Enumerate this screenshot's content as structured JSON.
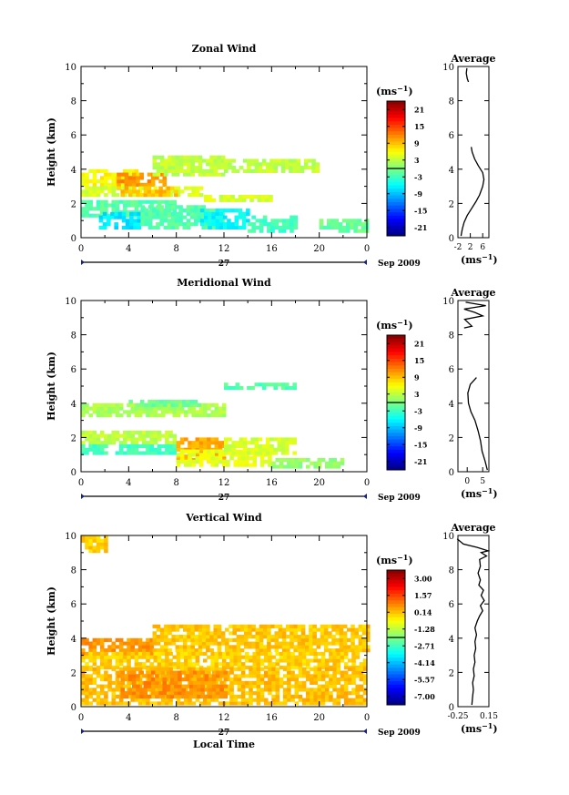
{
  "chart_data": [
    {
      "type": "heatmap",
      "title": "Zonal Wind",
      "ylabel": "Height (km)",
      "xlabel": "",
      "xlim": [
        0,
        24
      ],
      "ylim": [
        0,
        10
      ],
      "x_ticks": [
        "0",
        "4",
        "8",
        "12",
        "16",
        "20",
        "0"
      ],
      "y_ticks": [
        "0",
        "2",
        "4",
        "6",
        "8",
        "10"
      ],
      "day_label": "27",
      "date_label": "Sep 2009",
      "colorbar": {
        "unit_base": "(ms",
        "unit_exp": "−1",
        "unit_close": ")",
        "labels": [
          "21",
          "15",
          "9",
          "3",
          "-3",
          "-9",
          "-15",
          "-21"
        ],
        "vmin": -24,
        "vmax": 24
      },
      "regions": [
        {
          "x": [
            0,
            5
          ],
          "y": [
            3.0,
            3.9
          ],
          "value": 6
        },
        {
          "x": [
            3,
            7
          ],
          "y": [
            3.0,
            3.8
          ],
          "value": 11
        },
        {
          "x": [
            6,
            12
          ],
          "y": [
            3.6,
            4.8
          ],
          "value": 3
        },
        {
          "x": [
            12,
            20
          ],
          "y": [
            3.8,
            4.5
          ],
          "value": 3
        },
        {
          "x": [
            0,
            10
          ],
          "y": [
            2.4,
            3.0
          ],
          "value": 4
        },
        {
          "x": [
            3,
            8
          ],
          "y": [
            2.4,
            2.9
          ],
          "value": 9
        },
        {
          "x": [
            10,
            16
          ],
          "y": [
            2.1,
            2.5
          ],
          "value": 4
        },
        {
          "x": [
            0,
            8
          ],
          "y": [
            1.2,
            2.1
          ],
          "value": -2
        },
        {
          "x": [
            1.5,
            5
          ],
          "y": [
            0.5,
            1.4
          ],
          "value": -7
        },
        {
          "x": [
            5,
            12
          ],
          "y": [
            0.5,
            1.8
          ],
          "value": -2
        },
        {
          "x": [
            10,
            14
          ],
          "y": [
            0.5,
            1.6
          ],
          "value": -6
        },
        {
          "x": [
            14,
            18
          ],
          "y": [
            0.3,
            1.3
          ],
          "value": -3
        },
        {
          "x": [
            20,
            24
          ],
          "y": [
            0.3,
            1.1
          ],
          "value": -1
        }
      ],
      "profile": {
        "title": "Average",
        "xlim": [
          -2,
          8
        ],
        "x_ticks": [
          "-2",
          "2",
          "6"
        ],
        "x_tick_values": [
          -2,
          2,
          6
        ],
        "y_ticks": [
          "0",
          "2",
          "4",
          "6",
          "8",
          "10"
        ],
        "unit_base": "(ms",
        "unit_exp": "−1",
        "unit_close": ")",
        "segments": [
          [
            [
              -1.0,
              0.1
            ],
            [
              -0.6,
              0.5
            ],
            [
              0.0,
              0.9
            ],
            [
              1.0,
              1.3
            ],
            [
              2.4,
              1.7
            ],
            [
              3.8,
              2.1
            ],
            [
              5.0,
              2.5
            ],
            [
              6.0,
              3.0
            ],
            [
              6.4,
              3.4
            ],
            [
              6.0,
              3.8
            ],
            [
              4.6,
              4.2
            ],
            [
              3.4,
              4.6
            ],
            [
              2.6,
              5.0
            ],
            [
              2.3,
              5.3
            ]
          ],
          [
            [
              1.4,
              9.1
            ],
            [
              1.0,
              9.3
            ],
            [
              0.7,
              9.6
            ],
            [
              0.9,
              9.9
            ]
          ]
        ]
      }
    },
    {
      "type": "heatmap",
      "title": "Meridional Wind",
      "ylabel": "Height (km)",
      "xlabel": "",
      "xlim": [
        0,
        24
      ],
      "ylim": [
        0,
        10
      ],
      "x_ticks": [
        "0",
        "4",
        "8",
        "12",
        "16",
        "20",
        "0"
      ],
      "y_ticks": [
        "0",
        "2",
        "4",
        "6",
        "8",
        "10"
      ],
      "day_label": "27",
      "date_label": "Sep 2009",
      "colorbar": {
        "unit_base": "(ms",
        "unit_exp": "−1",
        "unit_close": ")",
        "labels": [
          "21",
          "15",
          "9",
          "3",
          "-3",
          "-9",
          "-15",
          "-21"
        ],
        "vmin": -24,
        "vmax": 24
      },
      "regions": [
        {
          "x": [
            0,
            12
          ],
          "y": [
            3.2,
            4.0
          ],
          "value": 2
        },
        {
          "x": [
            4,
            10
          ],
          "y": [
            3.8,
            4.2
          ],
          "value": -1
        },
        {
          "x": [
            12,
            18
          ],
          "y": [
            4.8,
            5.2
          ],
          "value": -2
        },
        {
          "x": [
            0,
            8
          ],
          "y": [
            1.6,
            2.4
          ],
          "value": 3
        },
        {
          "x": [
            0,
            8
          ],
          "y": [
            1.0,
            1.6
          ],
          "value": -3
        },
        {
          "x": [
            8,
            12
          ],
          "y": [
            0.6,
            1.9
          ],
          "value": 10
        },
        {
          "x": [
            8,
            16
          ],
          "y": [
            0.3,
            1.2
          ],
          "value": 5
        },
        {
          "x": [
            12,
            18
          ],
          "y": [
            1.0,
            1.9
          ],
          "value": 4
        },
        {
          "x": [
            16,
            22
          ],
          "y": [
            0.2,
            0.8
          ],
          "value": 1
        }
      ],
      "profile": {
        "title": "Average",
        "xlim": [
          -3,
          7
        ],
        "x_ticks": [
          "0",
          "5"
        ],
        "x_tick_values": [
          0,
          5
        ],
        "y_ticks": [
          "0",
          "2",
          "4",
          "6",
          "8",
          "10"
        ],
        "unit_base": "(ms",
        "unit_exp": "−1",
        "unit_close": ")",
        "segments": [
          [
            [
              6.5,
              0.1
            ],
            [
              5.8,
              0.6
            ],
            [
              4.8,
              1.2
            ],
            [
              4.3,
              1.8
            ],
            [
              3.5,
              2.4
            ],
            [
              2.5,
              3.0
            ],
            [
              1.2,
              3.5
            ],
            [
              0.4,
              4.0
            ],
            [
              0.2,
              4.6
            ],
            [
              1.0,
              5.1
            ],
            [
              3.0,
              5.5
            ]
          ],
          [
            [
              -1.0,
              8.4
            ],
            [
              1.5,
              8.5
            ],
            [
              -0.8,
              8.9
            ],
            [
              5.0,
              9.1
            ],
            [
              2.5,
              9.3
            ],
            [
              -1.0,
              9.5
            ],
            [
              6.0,
              9.7
            ],
            [
              -0.5,
              9.9
            ]
          ]
        ]
      }
    },
    {
      "type": "heatmap",
      "title": "Vertical Wind",
      "ylabel": "Height (km)",
      "xlabel": "Local Time",
      "xlim": [
        0,
        24
      ],
      "ylim": [
        0,
        10
      ],
      "x_ticks": [
        "0",
        "4",
        "8",
        "12",
        "16",
        "20",
        "0"
      ],
      "y_ticks": [
        "0",
        "2",
        "4",
        "6",
        "8",
        "10"
      ],
      "day_label": "27",
      "date_label": "Sep 2009",
      "colorbar": {
        "unit_base": "(ms",
        "unit_exp": "−1",
        "unit_close": ")",
        "labels": [
          "3.00",
          "1.57",
          "0.14",
          "-1.28",
          "-2.71",
          "-4.14",
          "-5.57",
          "-7.00"
        ],
        "vmin": -8.4,
        "vmax": 4.4
      },
      "regions": [
        {
          "x": [
            0,
            6
          ],
          "y": [
            3.0,
            3.9
          ],
          "value": 0.9
        },
        {
          "x": [
            6,
            24
          ],
          "y": [
            3.2,
            4.8
          ],
          "value": 0.3
        },
        {
          "x": [
            0,
            24
          ],
          "y": [
            2.2,
            3.2
          ],
          "value": 0.2
        },
        {
          "x": [
            0,
            24
          ],
          "y": [
            0.1,
            2.2
          ],
          "value": 0.4
        },
        {
          "x": [
            3,
            12
          ],
          "y": [
            0.5,
            2.0
          ],
          "value": 1.0
        },
        {
          "x": [
            0,
            2
          ],
          "y": [
            9.0,
            10.0
          ],
          "value": 0.2
        }
      ],
      "profile": {
        "title": "Average",
        "xlim": [
          -0.25,
          0.15
        ],
        "x_ticks": [
          "-0.25",
          "0.15"
        ],
        "x_tick_values": [
          -0.25,
          0.15
        ],
        "y_ticks": [
          "0",
          "2",
          "4",
          "6",
          "8",
          "10"
        ],
        "unit_base": "(ms",
        "unit_exp": "−1",
        "unit_close": ")",
        "segments": [
          [
            [
              -0.07,
              0.1
            ],
            [
              -0.06,
              0.6
            ],
            [
              -0.05,
              1.0
            ],
            [
              -0.06,
              1.4
            ],
            [
              -0.04,
              1.8
            ],
            [
              -0.05,
              2.2
            ],
            [
              -0.03,
              2.6
            ],
            [
              -0.04,
              3.0
            ],
            [
              -0.02,
              3.4
            ],
            [
              -0.03,
              3.8
            ],
            [
              -0.01,
              4.2
            ],
            [
              -0.03,
              4.6
            ],
            [
              0.0,
              5.0
            ],
            [
              0.03,
              5.3
            ],
            [
              0.07,
              5.6
            ],
            [
              0.04,
              5.9
            ],
            [
              0.09,
              6.2
            ],
            [
              0.05,
              6.5
            ],
            [
              0.08,
              6.8
            ],
            [
              0.02,
              7.1
            ],
            [
              0.04,
              7.4
            ],
            [
              0.01,
              7.8
            ],
            [
              0.04,
              8.2
            ],
            [
              0.03,
              8.6
            ],
            [
              0.12,
              8.8
            ],
            [
              0.05,
              9.0
            ],
            [
              0.14,
              9.1
            ],
            [
              0.0,
              9.3
            ],
            [
              -0.18,
              9.5
            ],
            [
              -0.26,
              9.8
            ]
          ]
        ]
      }
    }
  ]
}
